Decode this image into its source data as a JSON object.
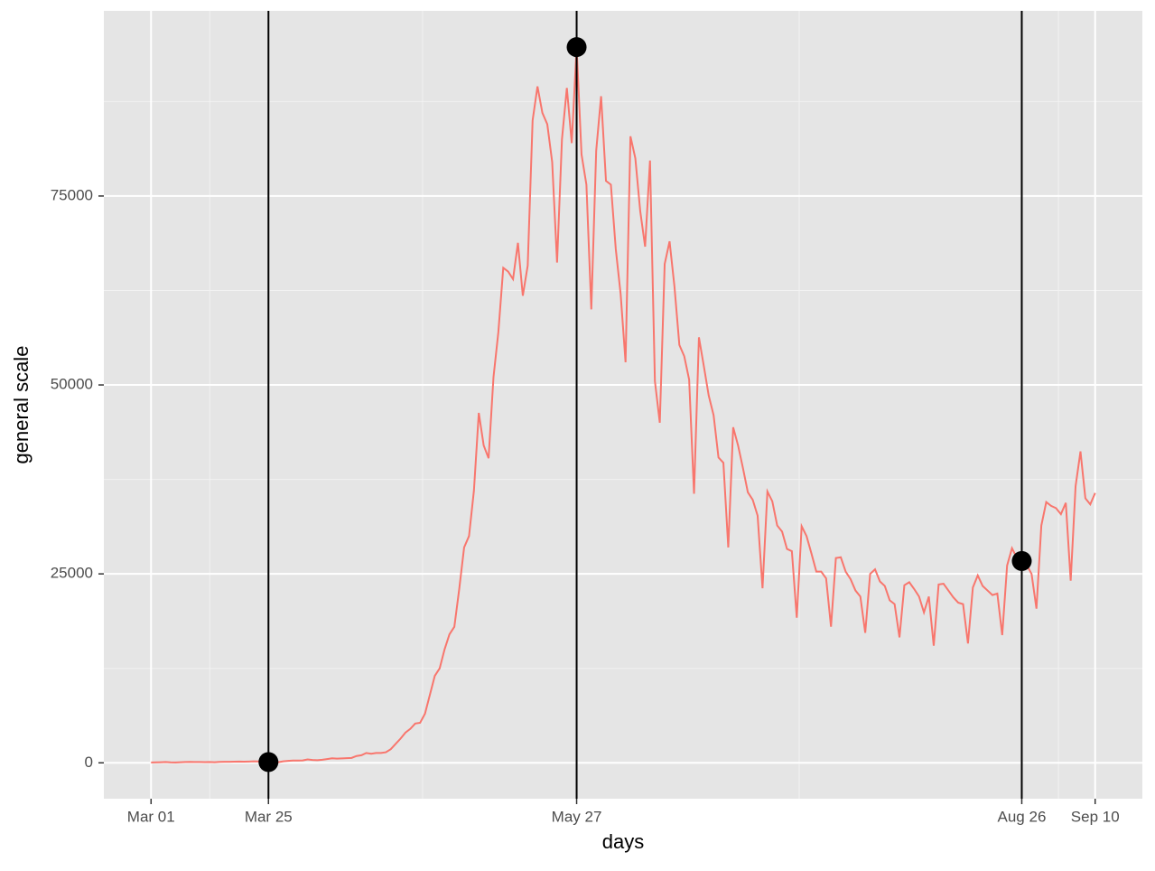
{
  "chart_data": {
    "type": "line",
    "x_label": "days",
    "y_label": "general scale",
    "x": [
      "Mar 01",
      "Mar 02",
      "Mar 03",
      "Mar 04",
      "Mar 05",
      "Mar 06",
      "Mar 07",
      "Mar 08",
      "Mar 09",
      "Mar 10",
      "Mar 11",
      "Mar 12",
      "Mar 13",
      "Mar 14",
      "Mar 15",
      "Mar 16",
      "Mar 17",
      "Mar 18",
      "Mar 19",
      "Mar 20",
      "Mar 21",
      "Mar 22",
      "Mar 23",
      "Mar 24",
      "Mar 25",
      "Mar 26",
      "Mar 27",
      "Mar 28",
      "Mar 29",
      "Mar 30",
      "Mar 31",
      "Apr 01",
      "Apr 02",
      "Apr 03",
      "Apr 04",
      "Apr 05",
      "Apr 06",
      "Apr 07",
      "Apr 08",
      "Apr 09",
      "Apr 10",
      "Apr 11",
      "Apr 12",
      "Apr 13",
      "Apr 14",
      "Apr 15",
      "Apr 16",
      "Apr 17",
      "Apr 18",
      "Apr 19",
      "Apr 20",
      "Apr 21",
      "Apr 22",
      "Apr 23",
      "Apr 24",
      "Apr 25",
      "Apr 26",
      "Apr 27",
      "Apr 28",
      "Apr 29",
      "Apr 30",
      "May 01",
      "May 02",
      "May 03",
      "May 04",
      "May 05",
      "May 06",
      "May 07",
      "May 08",
      "May 09",
      "May 10",
      "May 11",
      "May 12",
      "May 13",
      "May 14",
      "May 15",
      "May 16",
      "May 17",
      "May 18",
      "May 19",
      "May 20",
      "May 21",
      "May 22",
      "May 23",
      "May 24",
      "May 25",
      "May 26",
      "May 27",
      "May 28",
      "May 29",
      "May 30",
      "May 31",
      "Jun 01",
      "Jun 02",
      "Jun 03",
      "Jun 04",
      "Jun 05",
      "Jun 06",
      "Jun 07",
      "Jun 08",
      "Jun 09",
      "Jun 10",
      "Jun 11",
      "Jun 12",
      "Jun 13",
      "Jun 14",
      "Jun 15",
      "Jun 16",
      "Jun 17",
      "Jun 18",
      "Jun 19",
      "Jun 20",
      "Jun 21",
      "Jun 22",
      "Jun 23",
      "Jun 24",
      "Jun 25",
      "Jun 26",
      "Jun 27",
      "Jun 28",
      "Jun 29",
      "Jun 30",
      "Jul 01",
      "Jul 02",
      "Jul 03",
      "Jul 04",
      "Jul 05",
      "Jul 06",
      "Jul 07",
      "Jul 08",
      "Jul 09",
      "Jul 10",
      "Jul 11",
      "Jul 12",
      "Jul 13",
      "Jul 14",
      "Jul 15",
      "Jul 16",
      "Jul 17",
      "Jul 18",
      "Jul 19",
      "Jul 20",
      "Jul 21",
      "Jul 22",
      "Jul 23",
      "Jul 24",
      "Jul 25",
      "Jul 26",
      "Jul 27",
      "Jul 28",
      "Jul 29",
      "Jul 30",
      "Jul 31",
      "Aug 01",
      "Aug 02",
      "Aug 03",
      "Aug 04",
      "Aug 05",
      "Aug 06",
      "Aug 07",
      "Aug 08",
      "Aug 09",
      "Aug 10",
      "Aug 11",
      "Aug 12",
      "Aug 13",
      "Aug 14",
      "Aug 15",
      "Aug 16",
      "Aug 17",
      "Aug 18",
      "Aug 19",
      "Aug 20",
      "Aug 21",
      "Aug 22",
      "Aug 23",
      "Aug 24",
      "Aug 25",
      "Aug 26",
      "Aug 27",
      "Aug 28",
      "Aug 29",
      "Aug 30",
      "Aug 31",
      "Sep 01",
      "Sep 02",
      "Sep 03",
      "Sep 04",
      "Sep 05",
      "Sep 06",
      "Sep 07",
      "Sep 08",
      "Sep 09",
      "Sep 10"
    ],
    "values": [
      50,
      60,
      80,
      100,
      60,
      50,
      80,
      100,
      120,
      110,
      100,
      90,
      100,
      80,
      120,
      140,
      130,
      150,
      160,
      150,
      170,
      190,
      180,
      200,
      100,
      150,
      80,
      200,
      250,
      300,
      300,
      320,
      450,
      380,
      350,
      400,
      500,
      600,
      550,
      580,
      620,
      650,
      900,
      1000,
      1300,
      1200,
      1300,
      1300,
      1400,
      1800,
      2500,
      3200,
      4000,
      4500,
      5200,
      5300,
      6500,
      9000,
      11500,
      12500,
      15000,
      17000,
      18000,
      23000,
      28500,
      30000,
      36000,
      46300,
      42000,
      40300,
      51000,
      57000,
      65500,
      65000,
      64000,
      68800,
      61800,
      65800,
      85000,
      89500,
      86000,
      84500,
      79500,
      66200,
      82500,
      89300,
      82000,
      94700,
      80500,
      76500,
      60000,
      81000,
      88200,
      77000,
      76500,
      68000,
      62000,
      53000,
      82900,
      80000,
      73000,
      68300,
      79700,
      50500,
      45000,
      66000,
      69000,
      63000,
      55300,
      53800,
      50700,
      35600,
      56300,
      52500,
      48600,
      46000,
      40400,
      39700,
      28500,
      44400,
      42000,
      39000,
      35800,
      34800,
      32700,
      23100,
      35900,
      34600,
      31400,
      30600,
      28300,
      28000,
      19200,
      31300,
      30000,
      27700,
      25300,
      25300,
      24400,
      18000,
      27100,
      27200,
      25300,
      24300,
      22800,
      22000,
      17200,
      25000,
      25600,
      24000,
      23400,
      21500,
      21000,
      16600,
      23500,
      23900,
      23000,
      22000,
      19900,
      22000,
      15500,
      23600,
      23700,
      22800,
      21900,
      21200,
      21000,
      15800,
      23200,
      24800,
      23400,
      22800,
      22200,
      22400,
      16900,
      26100,
      28400,
      27100,
      26700,
      26200,
      25000,
      20400,
      31400,
      34500,
      34000,
      33700,
      32900,
      34400,
      24100,
      36600,
      41200,
      35000,
      34200,
      35700
    ],
    "color": "#f8766d",
    "highlights": {
      "x": [
        "Mar 25",
        "May 27",
        "Aug 26"
      ],
      "values": [
        100,
        94700,
        26700
      ],
      "color": "#000000"
    },
    "xlim": [
      "Mar 01",
      "Sep 10"
    ],
    "xticks": [
      "Mar 01",
      "Mar 25",
      "May 27",
      "Aug 26",
      "Sep 10"
    ],
    "ylim": [
      -4750,
      99500
    ],
    "yticks": [
      0,
      25000,
      50000,
      75000
    ],
    "grid": true
  }
}
